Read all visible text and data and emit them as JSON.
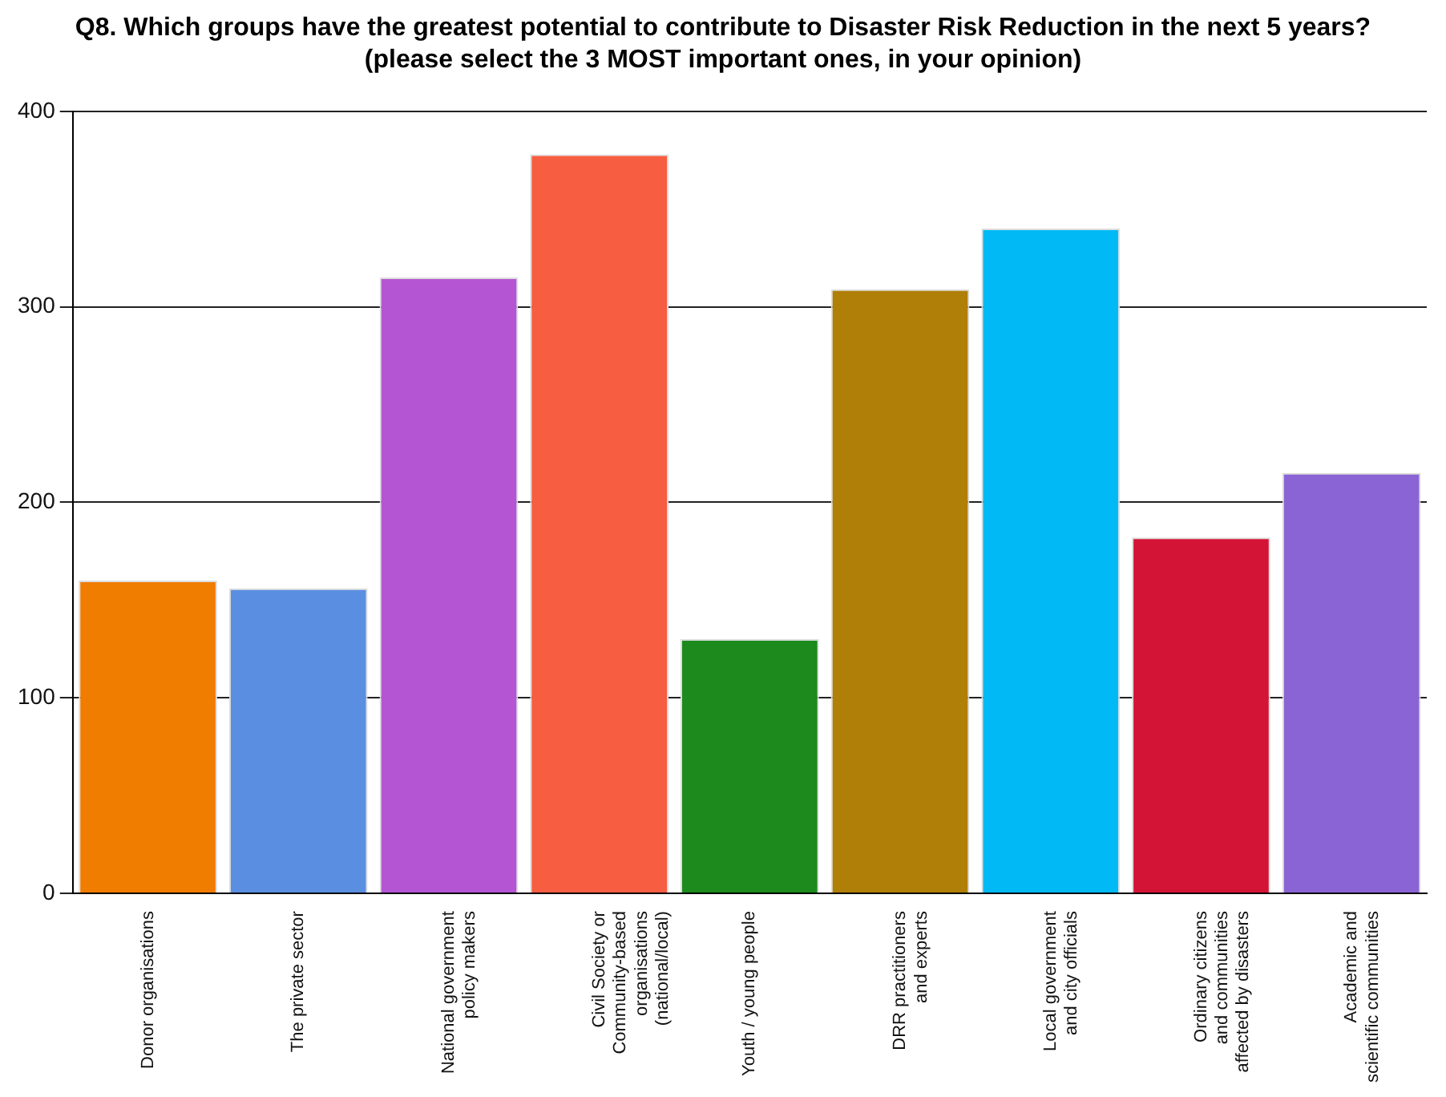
{
  "chart_data": {
    "type": "bar",
    "title": "Q8. Which groups have the greatest potential to contribute to Disaster Risk Reduction in the next 5 years? (please select the 3 MOST important ones, in your opinion)",
    "categories": [
      "Donor organisations",
      "The private sector",
      "National government\npolicy makers",
      "Civil Society or\nCommunity-based\norganisations\n(national/local)",
      "Youth / young people",
      "DRR practitioners\nand experts",
      "Local government\nand city officials",
      "Ordinary citizens\nand communities\naffected by disasters",
      "Academic and\nscientific communities"
    ],
    "values": [
      160,
      156,
      315,
      378,
      130,
      309,
      340,
      182,
      215
    ],
    "colors": [
      "#f07c00",
      "#5a8ee0",
      "#b455d4",
      "#f75d40",
      "#1c8a1c",
      "#b07f08",
      "#00b9f5",
      "#d41436",
      "#8a64d4"
    ],
    "ylim": [
      0,
      400
    ],
    "yticks": [
      0,
      100,
      200,
      300,
      400
    ],
    "grid": "y",
    "legend": false
  }
}
